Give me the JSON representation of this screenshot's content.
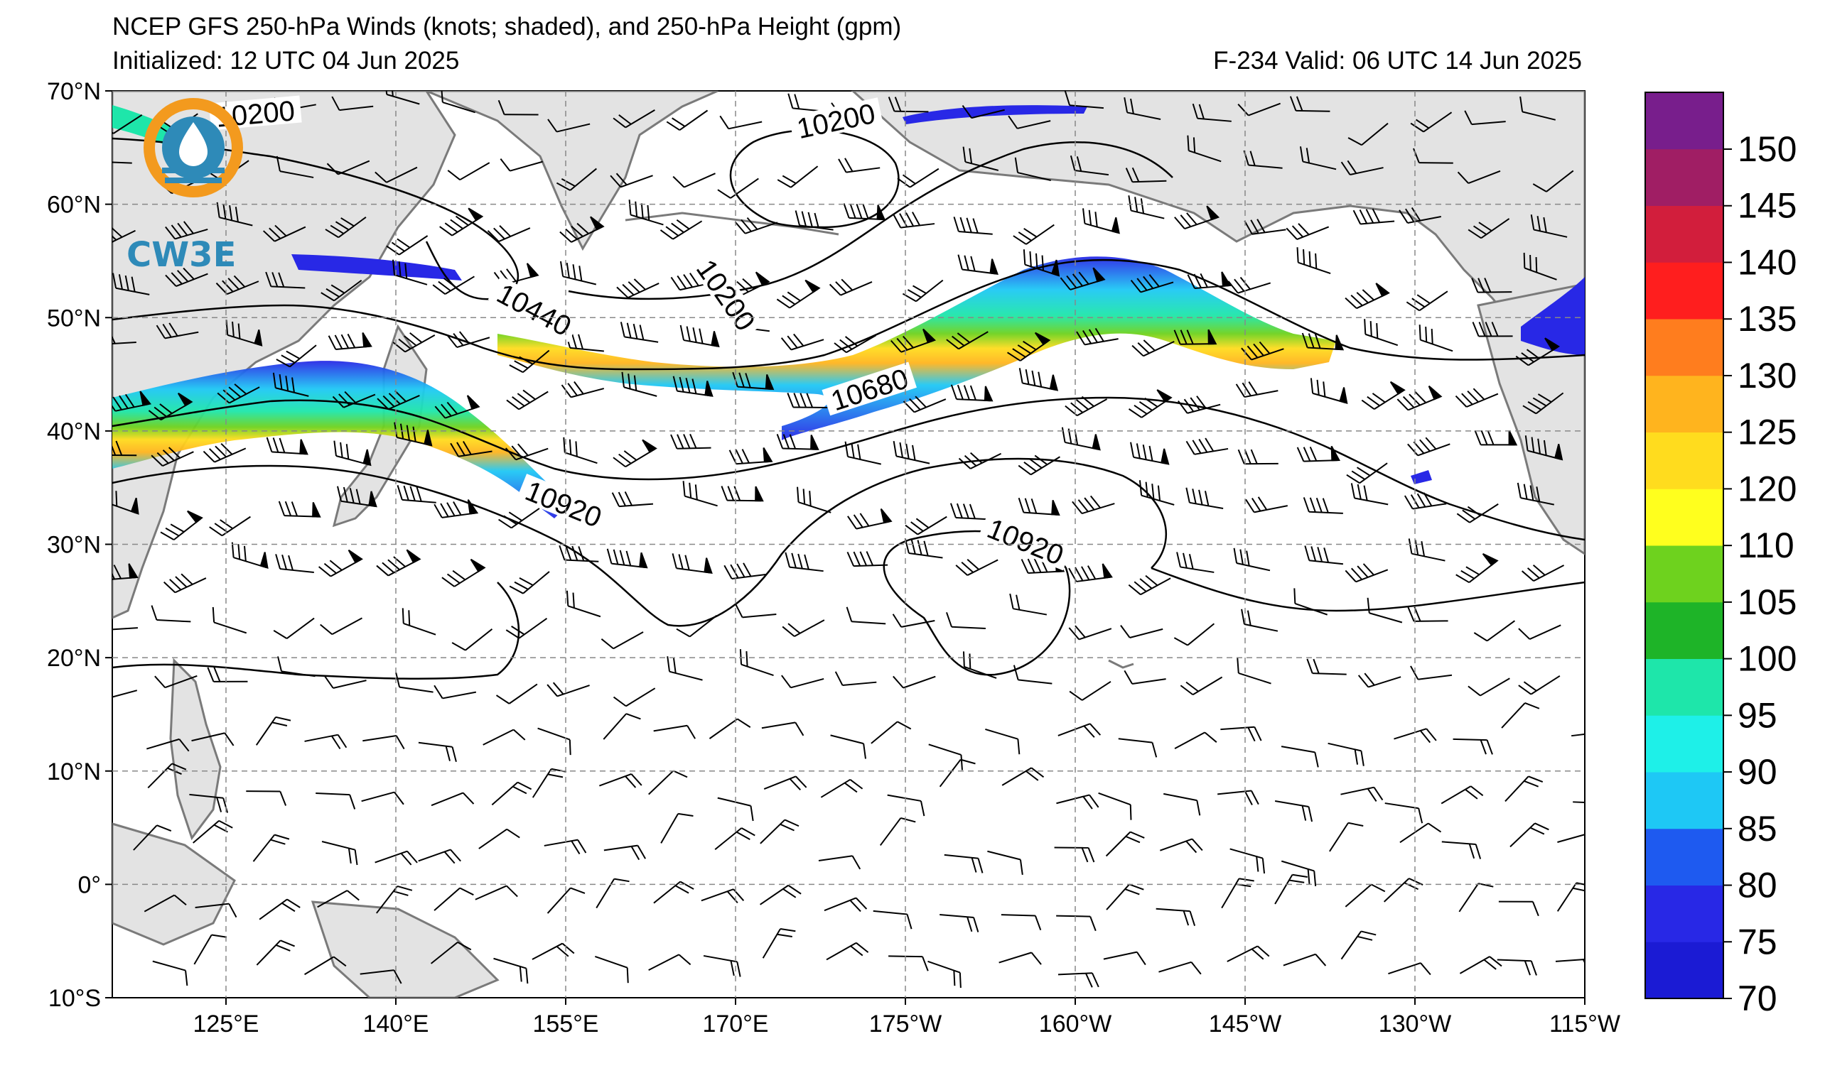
{
  "header": {
    "title": "NCEP GFS 250-hPa Winds (knots; shaded), and 250-hPa Height (gpm)",
    "initialized": "Initialized: 12 UTC 04 Jun 2025",
    "valid": "F-234  Valid: 06 UTC 14 Jun 2025"
  },
  "logo": {
    "text": "CW3E",
    "icon": "cw3e-water-drop-logo-icon"
  },
  "map": {
    "lat_labels": [
      "70°N",
      "60°N",
      "50°N",
      "40°N",
      "30°N",
      "20°N",
      "10°N",
      "0°",
      "10°S"
    ],
    "lon_labels": [
      "125°E",
      "140°E",
      "155°E",
      "170°E",
      "175°W",
      "160°W",
      "145°W",
      "130°W",
      "115°W"
    ],
    "contour_labels": [
      "10200",
      "10200",
      "10200",
      "10440",
      "10680",
      "10920",
      "10920"
    ],
    "land_color": "#e3e3e3",
    "coast_color": "#7a7a7a"
  },
  "colorbar": {
    "labels": [
      "150",
      "145",
      "140",
      "135",
      "130",
      "125",
      "120",
      "110",
      "105",
      "100",
      "95",
      "90",
      "85",
      "80",
      "75",
      "70"
    ],
    "colors": [
      "#1b1bd4",
      "#2828e6",
      "#1e5af0",
      "#1ec8f5",
      "#1ef0e8",
      "#1ee6aa",
      "#1eb428",
      "#6ed21e",
      "#ffff1e",
      "#ffdc1e",
      "#ffb41e",
      "#ff7d1e",
      "#ff1e1e",
      "#d21e3c",
      "#a01e64",
      "#781e8c"
    ]
  }
}
